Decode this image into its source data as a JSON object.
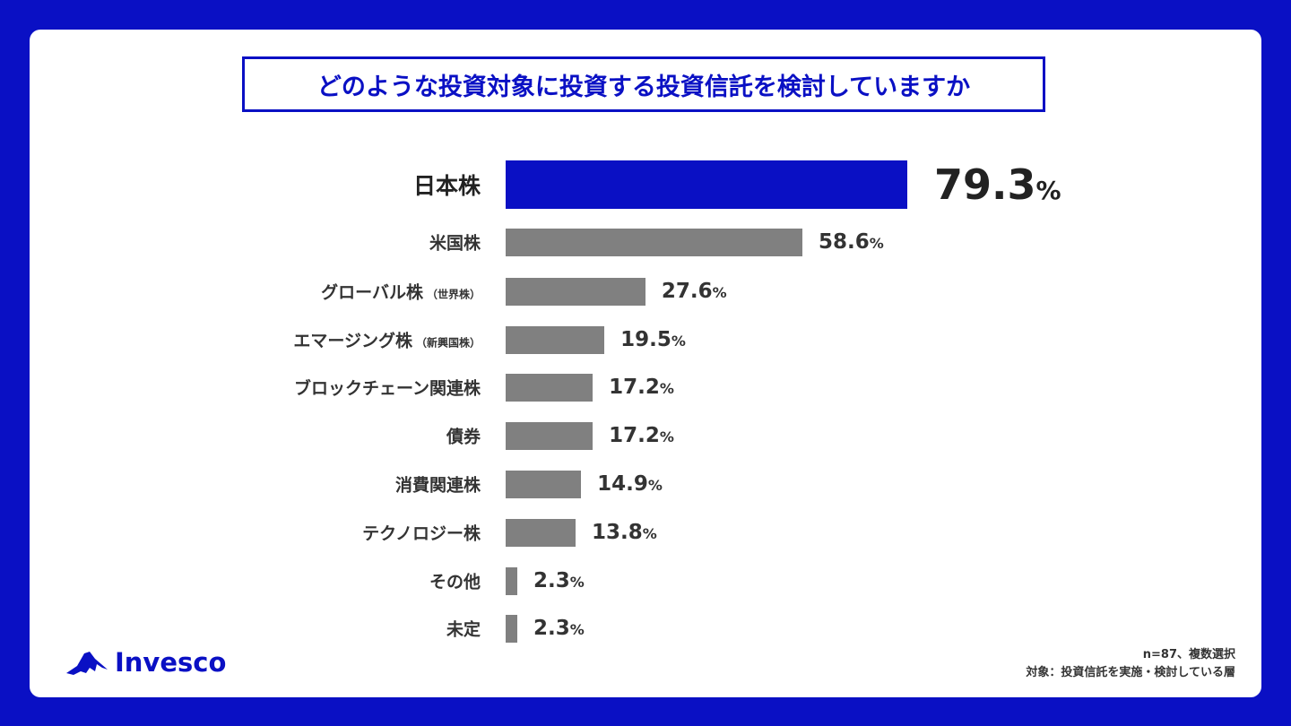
{
  "brand_color": "#0a10c4",
  "bar_color": "#808080",
  "logo_text": "Invesco",
  "footnote": {
    "line1": "n=87、複数選択",
    "line2": "対象：投資信託を実施・検討している層"
  },
  "chart_data": {
    "type": "bar",
    "orientation": "horizontal",
    "title": "どのような投資対象に投資する投資信託を検討していますか",
    "unit": "%",
    "categories": [
      {
        "label": "日本株",
        "sub": ""
      },
      {
        "label": "米国株",
        "sub": ""
      },
      {
        "label": "グローバル株",
        "sub": "（世界株）"
      },
      {
        "label": "エマージング株",
        "sub": "（新興国株）"
      },
      {
        "label": "ブロックチェーン関連株",
        "sub": ""
      },
      {
        "label": "債券",
        "sub": ""
      },
      {
        "label": "消費関連株",
        "sub": ""
      },
      {
        "label": "テクノロジー株",
        "sub": ""
      },
      {
        "label": "その他",
        "sub": ""
      },
      {
        "label": "未定",
        "sub": ""
      }
    ],
    "values": [
      79.3,
      58.6,
      27.6,
      19.5,
      17.2,
      17.2,
      14.9,
      13.8,
      2.3,
      2.3
    ],
    "highlight_index": 0,
    "grid": false
  }
}
